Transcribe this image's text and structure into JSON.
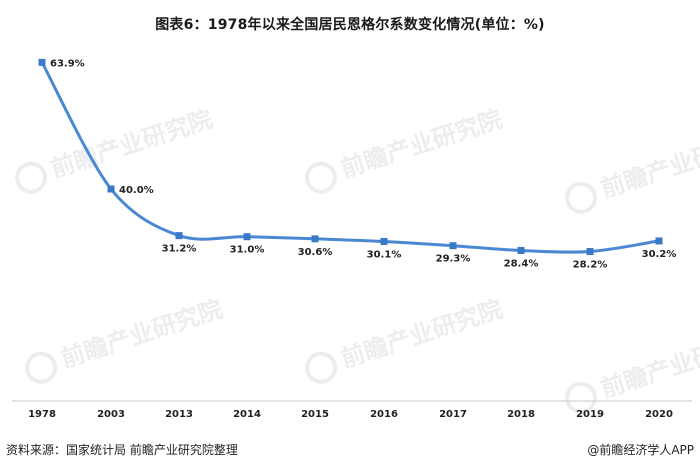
{
  "title": "图表6：1978年以来全国居民恩格尔系数变化情况(单位：%)",
  "source_text": "资料来源：国家统计局 前瞻产业研究院整理",
  "brand_text": "@前瞻经济学人APP",
  "watermark": "前瞻产业研究院",
  "colors": {
    "line": "#4a88d4",
    "marker": "#3a78c8",
    "axis": "#c8c8c8"
  },
  "chart_data": {
    "type": "line",
    "title": "图表6：1978年以来全国居民恩格尔系数变化情况(单位：%)",
    "categories": [
      "1978",
      "2003",
      "2013",
      "2014",
      "2015",
      "2016",
      "2017",
      "2018",
      "2019",
      "2020"
    ],
    "series": [
      {
        "values": [
          63.9,
          40.0,
          31.2,
          31.0,
          30.6,
          30.1,
          29.3,
          28.4,
          28.2,
          30.2
        ],
        "labels": [
          "63.9%",
          "40.0%",
          "31.2%",
          "31.0%",
          "30.6%",
          "30.1%",
          "29.3%",
          "28.4%",
          "28.2%",
          "30.2%"
        ]
      }
    ],
    "ylim": [
      0,
      70
    ],
    "unit": "%",
    "grid": false,
    "legend": "none",
    "smooth": true
  }
}
